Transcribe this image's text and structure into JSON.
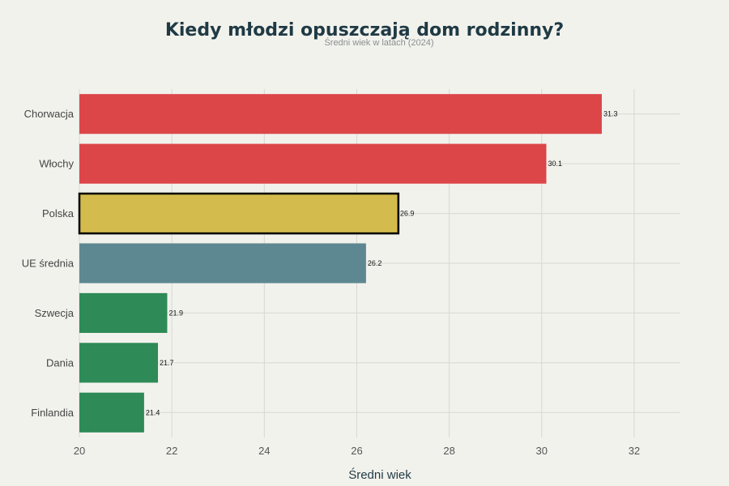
{
  "chart_data": {
    "type": "bar",
    "orientation": "horizontal",
    "title": "Kiedy młodzi opuszczają dom rodzinny?",
    "subtitle": "Średni wiek w latach (2024)",
    "xlabel": "Średni wiek",
    "ylabel": "",
    "xlim": [
      20,
      33
    ],
    "xticks": [
      20,
      22,
      24,
      26,
      28,
      30,
      32
    ],
    "categories": [
      "Chorwacja",
      "Włochy",
      "Polska",
      "UE średnia",
      "Szwecja",
      "Dania",
      "Finlandia"
    ],
    "values": [
      31.3,
      30.1,
      26.9,
      26.2,
      21.9,
      21.7,
      21.4
    ],
    "value_labels": [
      "31.3",
      "30.1",
      "26.9",
      "26.2",
      "21.9",
      "21.7",
      "21.4"
    ],
    "bar_colors": [
      "#dc4649",
      "#dc4649",
      "#d4bb4d",
      "#5e8891",
      "#2e8b57",
      "#2e8b57",
      "#2e8b57"
    ],
    "highlighted": "Polska",
    "grid": true
  },
  "colors": {
    "background": "#f2f2ed",
    "title": "#1f3a44",
    "grid": "#d8d8d2"
  }
}
